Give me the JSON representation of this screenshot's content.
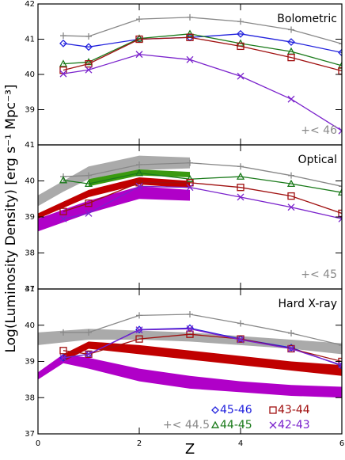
{
  "chart_data": [
    {
      "type": "line",
      "title": "Bolometric",
      "annotation": "+< 46",
      "xlim": [
        0,
        6
      ],
      "ylim": [
        38,
        42
      ],
      "yticks": [
        39,
        40,
        41,
        42
      ],
      "x": [
        0.5,
        1,
        2,
        3,
        4,
        5,
        6
      ],
      "series": [
        {
          "name": "+< 46",
          "color": "#888888",
          "marker": "plus",
          "values": [
            41.1,
            41.08,
            41.57,
            41.62,
            41.5,
            41.27,
            40.87
          ]
        },
        {
          "name": "45-46",
          "color": "#2222dd",
          "marker": "diamond",
          "values": [
            40.88,
            40.78,
            41.0,
            41.05,
            41.15,
            40.92,
            40.62
          ]
        },
        {
          "name": "44-45",
          "color": "#1a7a1a",
          "marker": "triangle",
          "values": [
            40.3,
            40.35,
            41.02,
            41.15,
            40.88,
            40.65,
            40.25
          ]
        },
        {
          "name": "43-44",
          "color": "#a01010",
          "marker": "square",
          "values": [
            40.12,
            40.3,
            41.0,
            41.05,
            40.8,
            40.48,
            40.1
          ]
        },
        {
          "name": "42-43",
          "color": "#7a22cc",
          "marker": "x",
          "values": [
            40.02,
            40.13,
            40.57,
            40.42,
            39.95,
            39.3,
            38.4
          ]
        }
      ],
      "bands": []
    },
    {
      "type": "line",
      "title": "Optical",
      "annotation": "+< 45",
      "ylabel": "Log(Luminosity Density) [erg s⁻¹ Mpc⁻³]",
      "xlim": [
        0,
        6
      ],
      "ylim": [
        37,
        41
      ],
      "yticks": [
        37,
        38,
        39,
        40,
        41
      ],
      "x": [
        0.5,
        1,
        2,
        3,
        4,
        5,
        6
      ],
      "bands": [
        {
          "color": "#aaaaaa",
          "x": [
            0,
            0.5,
            1,
            2,
            3
          ],
          "upper": [
            39.6,
            40.0,
            40.4,
            40.7,
            40.65
          ],
          "lower": [
            39.3,
            39.7,
            40.05,
            40.3,
            40.35
          ]
        },
        {
          "color": "#3a9a10",
          "x": [
            1,
            2,
            3
          ],
          "upper": [
            40.05,
            40.32,
            40.25
          ],
          "lower": [
            39.85,
            40.15,
            40.1
          ]
        },
        {
          "color": "#c00000",
          "x": [
            0,
            1,
            2,
            3
          ],
          "upper": [
            39.1,
            39.75,
            40.1,
            40.0
          ],
          "lower": [
            38.95,
            39.55,
            39.9,
            39.8
          ]
        },
        {
          "color": "#b000c8",
          "x": [
            0,
            1,
            2,
            3
          ],
          "upper": [
            38.95,
            39.45,
            39.85,
            39.75
          ],
          "lower": [
            38.6,
            39.1,
            39.5,
            39.45
          ]
        }
      ],
      "series": [
        {
          "name": "+< 45",
          "color": "#888888",
          "marker": "plus",
          "values": [
            40.12,
            40.15,
            40.45,
            40.5,
            40.4,
            40.15,
            39.85
          ]
        },
        {
          "name": "44-45",
          "color": "#1a7a1a",
          "marker": "triangle",
          "values": [
            40.02,
            39.92,
            40.22,
            40.05,
            40.12,
            39.92,
            39.68
          ]
        },
        {
          "name": "43-44",
          "color": "#a01010",
          "marker": "square",
          "values": [
            39.15,
            39.38,
            39.95,
            39.95,
            39.82,
            39.58,
            39.1
          ]
        },
        {
          "name": "42-43",
          "color": "#7a22cc",
          "marker": "x",
          "values": [
            38.95,
            39.1,
            39.85,
            39.82,
            39.55,
            39.27,
            38.95
          ]
        }
      ]
    },
    {
      "type": "line",
      "title": "Hard X-ray",
      "annotation": "+< 44.5",
      "xlabel": "Z",
      "xlim": [
        0,
        6
      ],
      "xticks": [
        0,
        2,
        4,
        6
      ],
      "ylim": [
        37,
        41
      ],
      "yticks": [
        37,
        38,
        39,
        40,
        41
      ],
      "x": [
        0.5,
        1,
        2,
        3,
        4,
        5,
        6
      ],
      "bands": [
        {
          "color": "#aaaaaa",
          "x": [
            0,
            1,
            2,
            3,
            4,
            5,
            6
          ],
          "upper": [
            39.8,
            39.9,
            39.85,
            39.8,
            39.7,
            39.6,
            39.5
          ],
          "lower": [
            39.45,
            39.6,
            39.6,
            39.55,
            39.45,
            39.35,
            39.2
          ]
        },
        {
          "color": "#b000c8",
          "x": [
            0,
            0.5,
            1,
            2,
            3,
            4,
            5,
            6
          ],
          "upper": [
            38.7,
            39.2,
            39.1,
            38.8,
            38.6,
            38.45,
            38.35,
            38.3
          ],
          "lower": [
            38.5,
            38.95,
            38.8,
            38.45,
            38.25,
            38.15,
            38.05,
            38.0
          ]
        },
        {
          "color": "#c00000",
          "x": [
            0.5,
            1,
            2,
            3,
            4,
            5,
            6
          ],
          "upper": [
            39.2,
            39.55,
            39.45,
            39.3,
            39.15,
            39.0,
            38.9
          ],
          "lower": [
            39.0,
            39.35,
            39.2,
            39.05,
            38.9,
            38.75,
            38.6
          ]
        }
      ],
      "series": [
        {
          "name": "+< 44.5",
          "color": "#888888",
          "marker": "plus",
          "values": [
            39.8,
            39.8,
            40.27,
            40.3,
            40.05,
            39.78,
            39.45
          ]
        },
        {
          "name": "45-46",
          "color": "#2222dd",
          "marker": "diamond",
          "values": [
            39.1,
            39.2,
            39.88,
            39.92,
            39.62,
            39.38,
            38.88
          ]
        },
        {
          "name": "43-44",
          "color": "#a01010",
          "marker": "square",
          "values": [
            39.3,
            39.2,
            39.62,
            39.75,
            39.62,
            39.35,
            39.0
          ]
        },
        {
          "name": "42-43",
          "color": "#7a22cc",
          "marker": "x",
          "values": [
            39.1,
            39.2,
            39.87,
            39.9,
            39.6,
            39.35,
            38.9
          ]
        }
      ],
      "legend": [
        {
          "name": "45-46",
          "color": "#2222dd",
          "marker": "diamond"
        },
        {
          "name": "43-44",
          "color": "#a01010",
          "marker": "square"
        },
        {
          "name": "44-45",
          "color": "#1a7a1a",
          "marker": "triangle"
        },
        {
          "name": "42-43",
          "color": "#7a22cc",
          "marker": "x"
        }
      ]
    }
  ]
}
